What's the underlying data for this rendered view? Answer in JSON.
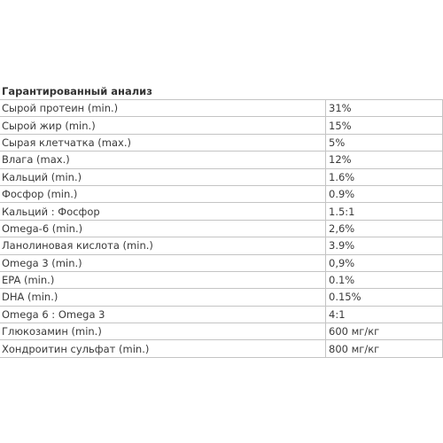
{
  "title": "Гарантированный анализ",
  "rows": [
    {
      "name": "Сырой протеин (min.)",
      "value": "31%"
    },
    {
      "name": "Сырой жир (min.)",
      "value": "15%"
    },
    {
      "name": "Сырая клетчатка (max.)",
      "value": "5%"
    },
    {
      "name": "Влага (max.)",
      "value": "12%"
    },
    {
      "name": "Кальций (min.)",
      "value": "1.6%"
    },
    {
      "name": "Фосфор (min.)",
      "value": "0.9%"
    },
    {
      "name": "Кальций : Фосфор",
      "value": "1.5:1"
    },
    {
      "name": "Omega-6 (min.)",
      "value": "2,6%"
    },
    {
      "name": "Ланолиновая кислота (min.)",
      "value": "3.9%"
    },
    {
      "name": "Omega 3 (min.)",
      "value": "0,9%"
    },
    {
      "name": "EPA (min.)",
      "value": "0.1%"
    },
    {
      "name": "DHA (min.)",
      "value": "0.15%"
    },
    {
      "name": "Omega 6 : Omega 3",
      "value": "4:1"
    },
    {
      "name": "Глюкозамин (min.)",
      "value": "600 мг/кг"
    },
    {
      "name": "Хондроитин сульфат (min.)",
      "value": "800 мг/кг"
    }
  ]
}
